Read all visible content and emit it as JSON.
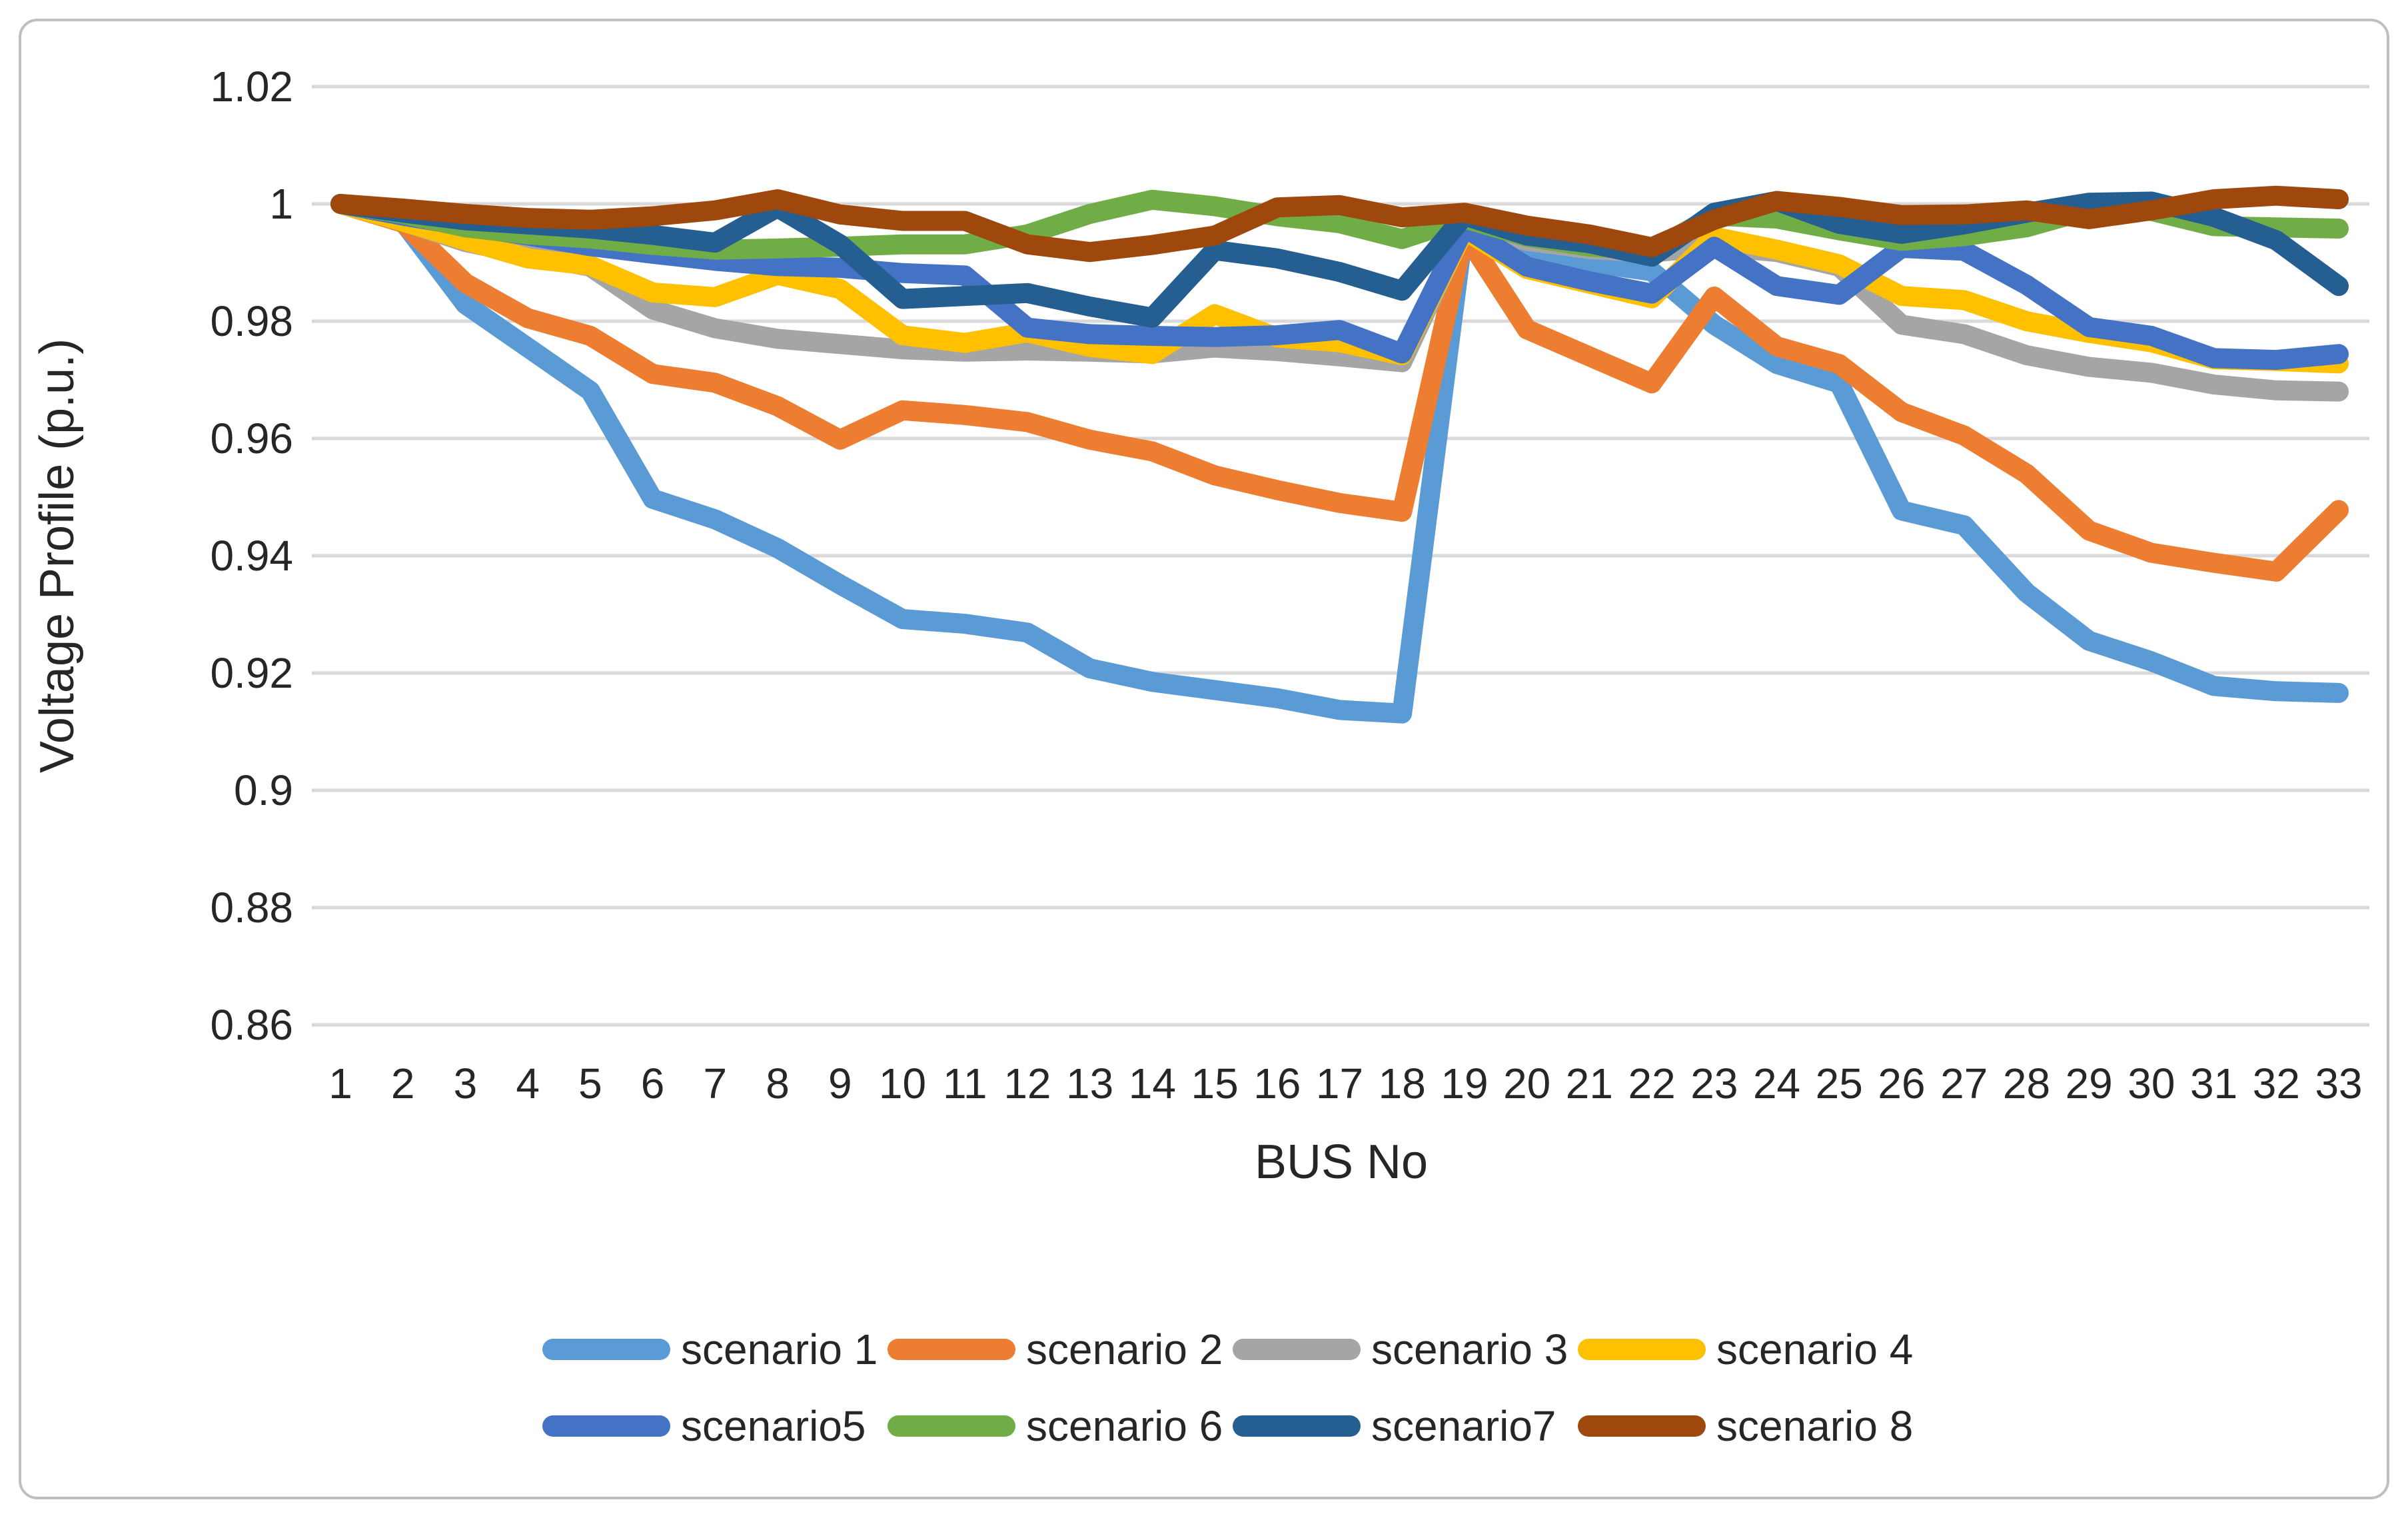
{
  "chart_data": {
    "type": "line",
    "title": "",
    "xlabel": "BUS No",
    "ylabel": "Voltage Profile (p.u.)",
    "x_categories": [
      "1",
      "2",
      "3",
      "4",
      "5",
      "6",
      "7",
      "8",
      "9",
      "10",
      "11",
      "12",
      "13",
      "14",
      "15",
      "16",
      "17",
      "18",
      "19",
      "20",
      "21",
      "22",
      "23",
      "24",
      "25",
      "26",
      "27",
      "28",
      "29",
      "30",
      "31",
      "32",
      "33"
    ],
    "yticks": [
      {
        "value": 1.02,
        "label": "1.02"
      },
      {
        "value": 1.0,
        "label": "1"
      },
      {
        "value": 0.98,
        "label": "0.98"
      },
      {
        "value": 0.96,
        "label": "0.96"
      },
      {
        "value": 0.94,
        "label": "0.94"
      },
      {
        "value": 0.92,
        "label": "0.92"
      },
      {
        "value": 0.9,
        "label": "0.9"
      },
      {
        "value": 0.88,
        "label": "0.88"
      },
      {
        "value": 0.86,
        "label": "0.86"
      }
    ],
    "ylim": [
      0.86,
      1.02
    ],
    "grid": "horizontal",
    "legend_position": "bottom-two-rows",
    "colors": {
      "gridline": "#D9D9D9",
      "border": "#BFBFBF",
      "text": "#262626"
    },
    "series": [
      {
        "name": "scenario 1",
        "color": "#5B9BD5",
        "values": [
          1.0,
          0.997,
          0.9829,
          0.9755,
          0.9681,
          0.9497,
          0.9462,
          0.9413,
          0.9351,
          0.9292,
          0.9284,
          0.9269,
          0.9208,
          0.9185,
          0.9171,
          0.9157,
          0.9137,
          0.9131,
          0.9965,
          0.9922,
          0.99,
          0.9885,
          0.9794,
          0.9727,
          0.9694,
          0.9477,
          0.9452,
          0.9337,
          0.9255,
          0.922,
          0.9178,
          0.9169,
          0.9166
        ]
      },
      {
        "name": "scenario 2",
        "color": "#ED7D31",
        "values": [
          1.0,
          0.9968,
          0.9865,
          0.9805,
          0.9775,
          0.971,
          0.9695,
          0.9655,
          0.9598,
          0.9648,
          0.964,
          0.9628,
          0.9598,
          0.9578,
          0.9537,
          0.9512,
          0.949,
          0.9475,
          0.995,
          0.9786,
          0.974,
          0.9694,
          0.9842,
          0.9757,
          0.9727,
          0.9645,
          0.9605,
          0.954,
          0.9443,
          0.9405,
          0.9388,
          0.9373,
          0.9478
        ]
      },
      {
        "name": "scenario 3",
        "color": "#A5A5A5",
        "values": [
          1.0,
          0.997,
          0.9935,
          0.9913,
          0.9893,
          0.982,
          0.9788,
          0.977,
          0.9761,
          0.9752,
          0.9748,
          0.975,
          0.9748,
          0.9745,
          0.9755,
          0.9749,
          0.974,
          0.973,
          0.9958,
          0.9937,
          0.9923,
          0.9917,
          0.9927,
          0.9918,
          0.9893,
          0.9794,
          0.9778,
          0.9742,
          0.9722,
          0.9712,
          0.9692,
          0.9682,
          0.968
        ]
      },
      {
        "name": "scenario 4",
        "color": "#FFC000",
        "values": [
          1.0,
          0.997,
          0.9938,
          0.9907,
          0.9895,
          0.9849,
          0.9841,
          0.9879,
          0.9855,
          0.9776,
          0.9763,
          0.9781,
          0.9756,
          0.9744,
          0.9812,
          0.9772,
          0.9764,
          0.9742,
          0.9955,
          0.9889,
          0.9864,
          0.9839,
          0.9944,
          0.9922,
          0.9897,
          0.9843,
          0.9836,
          0.98,
          0.978,
          0.9764,
          0.9735,
          0.9732,
          0.9728
        ]
      },
      {
        "name": "scenario5",
        "color": "#4472C4",
        "values": [
          1.0,
          0.998,
          0.9962,
          0.9946,
          0.9928,
          0.9915,
          0.9903,
          0.9894,
          0.9891,
          0.9882,
          0.9878,
          0.9789,
          0.9778,
          0.9775,
          0.9773,
          0.9776,
          0.9785,
          0.9745,
          0.996,
          0.9893,
          0.9868,
          0.9847,
          0.9927,
          0.986,
          0.9845,
          0.9925,
          0.992,
          0.9862,
          0.979,
          0.9775,
          0.9737,
          0.9734,
          0.9744
        ]
      },
      {
        "name": "scenario 6",
        "color": "#70AD47",
        "values": [
          1.0,
          0.9983,
          0.996,
          0.9948,
          0.9941,
          0.993,
          0.9922,
          0.9924,
          0.9927,
          0.9931,
          0.9931,
          0.9948,
          0.9983,
          1.0007,
          0.9996,
          0.9979,
          0.9967,
          0.994,
          0.9975,
          0.9944,
          0.9927,
          0.9921,
          0.998,
          0.9975,
          0.9955,
          0.9937,
          0.9945,
          0.996,
          0.999,
          0.9988,
          0.9962,
          0.996,
          0.9958
        ]
      },
      {
        "name": "scenario7",
        "color": "#255E91",
        "values": [
          1.0,
          0.9985,
          0.9972,
          0.9965,
          0.9958,
          0.9947,
          0.9934,
          0.9994,
          0.9931,
          0.9838,
          0.9843,
          0.9848,
          0.9825,
          0.9806,
          0.9921,
          0.9907,
          0.9884,
          0.9852,
          0.998,
          0.9946,
          0.9933,
          0.991,
          0.9985,
          1.0005,
          0.9966,
          0.9949,
          0.9965,
          0.9985,
          1.0002,
          1.0004,
          0.9978,
          0.9938,
          0.986
        ]
      },
      {
        "name": "scenario 8",
        "color": "#9E480E",
        "values": [
          1.0,
          0.9992,
          0.9983,
          0.9976,
          0.9973,
          0.9979,
          0.9989,
          1.0008,
          0.9982,
          0.9971,
          0.9971,
          0.9931,
          0.9918,
          0.993,
          0.9946,
          0.9994,
          0.9998,
          0.9977,
          0.9985,
          0.9963,
          0.9948,
          0.9926,
          0.9973,
          1.0005,
          0.9995,
          0.9981,
          0.9982,
          0.9989,
          0.9974,
          0.9989,
          1.0008,
          1.0014,
          1.0008
        ]
      }
    ]
  }
}
